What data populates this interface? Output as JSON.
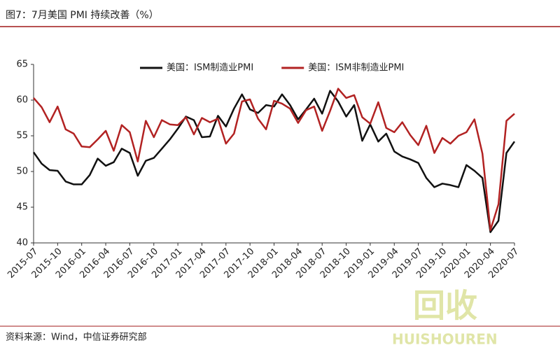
{
  "header": {
    "title": "图7：7月美国 PMI 持续改善（%）"
  },
  "chart_data": {
    "type": "line",
    "categories": [
      "2015-07",
      null,
      null,
      "2015-10",
      null,
      null,
      "2016-01",
      null,
      null,
      "2016-04",
      null,
      null,
      "2016-07",
      null,
      null,
      "2016-10",
      null,
      null,
      "2017-01",
      null,
      null,
      "2017-04",
      null,
      null,
      "2017-07",
      null,
      null,
      "2017-10",
      null,
      null,
      "2018-01",
      null,
      null,
      "2018-04",
      null,
      null,
      "2018-07",
      null,
      null,
      "2018-10",
      null,
      null,
      "2019-01",
      null,
      null,
      "2019-04",
      null,
      null,
      "2019-07",
      null,
      null,
      "2019-10",
      null,
      null,
      "2020-01",
      null,
      null,
      "2020-04",
      null,
      null,
      "2020-07"
    ],
    "series": [
      {
        "name": "美国：ISM制造业PMI",
        "color": "#111111",
        "values": [
          52.7,
          51.1,
          50.2,
          50.1,
          48.6,
          48.2,
          48.2,
          49.5,
          51.8,
          50.8,
          51.3,
          53.2,
          52.6,
          49.4,
          51.5,
          51.9,
          53.2,
          54.5,
          56.0,
          57.7,
          57.2,
          54.8,
          54.9,
          57.8,
          56.3,
          58.8,
          60.8,
          58.7,
          58.2,
          59.3,
          59.1,
          60.8,
          59.3,
          57.3,
          58.7,
          60.2,
          58.1,
          61.3,
          59.8,
          57.7,
          59.3,
          54.3,
          56.6,
          54.2,
          55.3,
          52.8,
          52.1,
          51.7,
          51.2,
          49.1,
          47.8,
          48.3,
          48.1,
          47.8,
          50.9,
          50.1,
          49.1,
          41.5,
          43.1,
          52.6,
          54.2
        ]
      },
      {
        "name": "美国：ISM非制造业PMI",
        "color": "#b22222",
        "values": [
          60.3,
          59.0,
          56.9,
          59.1,
          55.9,
          55.3,
          53.5,
          53.4,
          54.5,
          55.7,
          52.9,
          56.5,
          55.5,
          51.4,
          57.1,
          54.8,
          57.2,
          56.6,
          56.5,
          57.6,
          55.2,
          57.5,
          56.9,
          57.4,
          53.9,
          55.3,
          59.8,
          60.1,
          57.4,
          55.9,
          59.9,
          59.5,
          58.8,
          56.8,
          58.6,
          59.1,
          55.7,
          58.5,
          61.6,
          60.3,
          60.7,
          57.6,
          56.7,
          59.7,
          56.1,
          55.5,
          56.9,
          55.1,
          53.7,
          56.4,
          52.6,
          54.7,
          53.9,
          55.0,
          55.5,
          57.3,
          52.5,
          41.8,
          45.4,
          57.1,
          58.1
        ]
      }
    ],
    "ylim": [
      40,
      65
    ],
    "yticks": [
      40,
      45,
      50,
      55,
      60,
      65
    ],
    "legend": "top"
  },
  "footer": {
    "source": "资料来源：Wind，中信证券研究部"
  },
  "watermark": {
    "logo": "回收",
    "text": "HUISHOUREN"
  }
}
